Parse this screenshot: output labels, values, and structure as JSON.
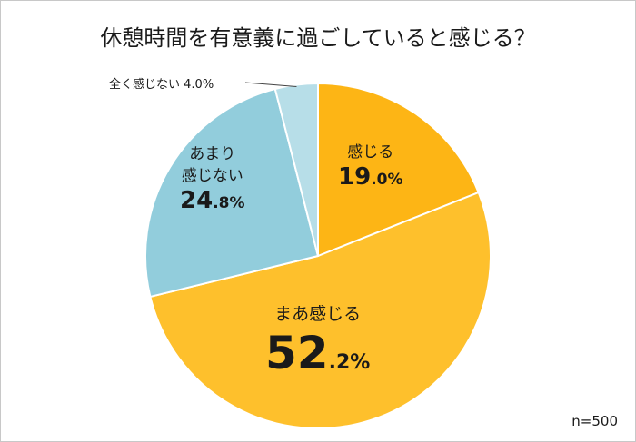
{
  "chart_data": {
    "type": "pie",
    "title": "休憩時間を有意義に過ごしていると感じる？",
    "categories": [
      "感じる",
      "まあ感じる",
      "あまり感じない",
      "全く感じない"
    ],
    "values": [
      19.0,
      52.2,
      24.8,
      4.0
    ],
    "unit": "%",
    "colors": [
      "#FDB515",
      "#FEC02C",
      "#92CDDC",
      "#B7DEE8"
    ],
    "labels": [
      {
        "category_lines": [
          "感じる"
        ],
        "int": "19",
        "dec": ".0%"
      },
      {
        "category_lines": [
          "まあ感じる"
        ],
        "int": "52",
        "dec": ".2%"
      },
      {
        "category_lines": [
          "あまり",
          "感じない"
        ],
        "int": "24",
        "dec": ".8%"
      },
      {
        "category_lines": [
          "全く感じない"
        ],
        "int": "",
        "dec": "4.0%"
      }
    ],
    "note": "n=500"
  }
}
